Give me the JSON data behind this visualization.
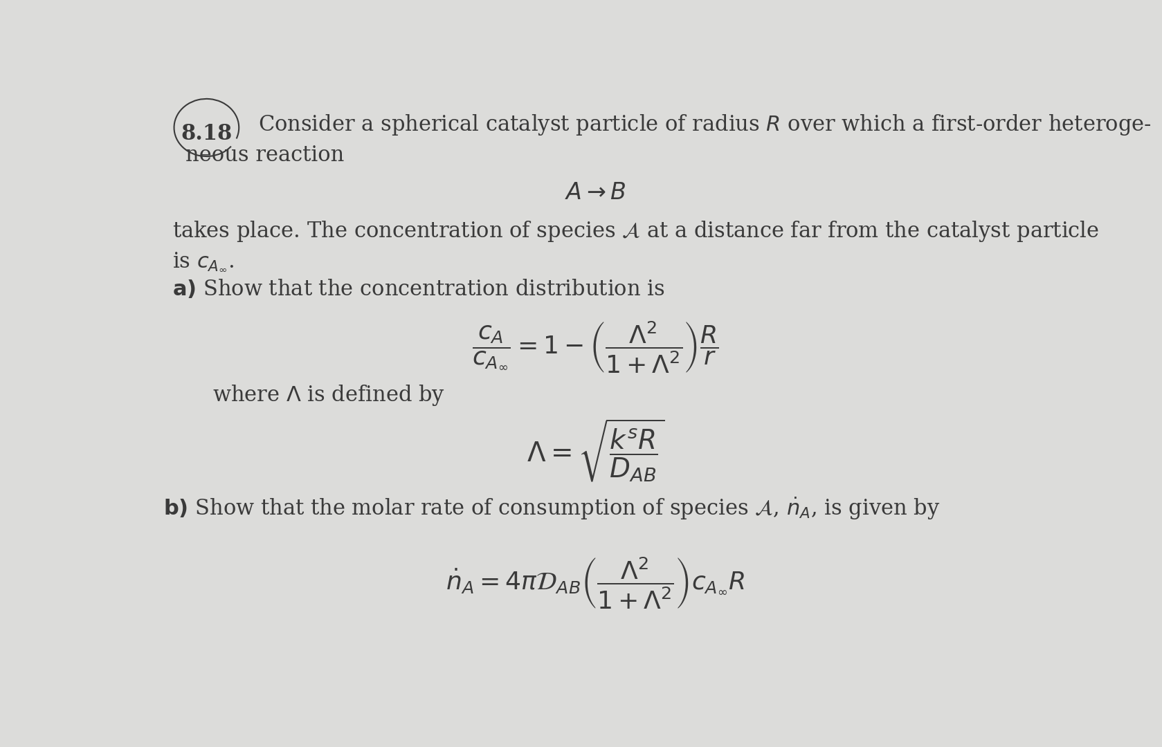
{
  "background_color": "#dcdcda",
  "page_color": "#f0f0ee",
  "text_color": "#3a3a3a",
  "fig_width": 16.79,
  "fig_height": 10.8,
  "fs_main": 22,
  "fs_eq1": 26,
  "fs_eq2": 28,
  "fs_eq3": 26
}
